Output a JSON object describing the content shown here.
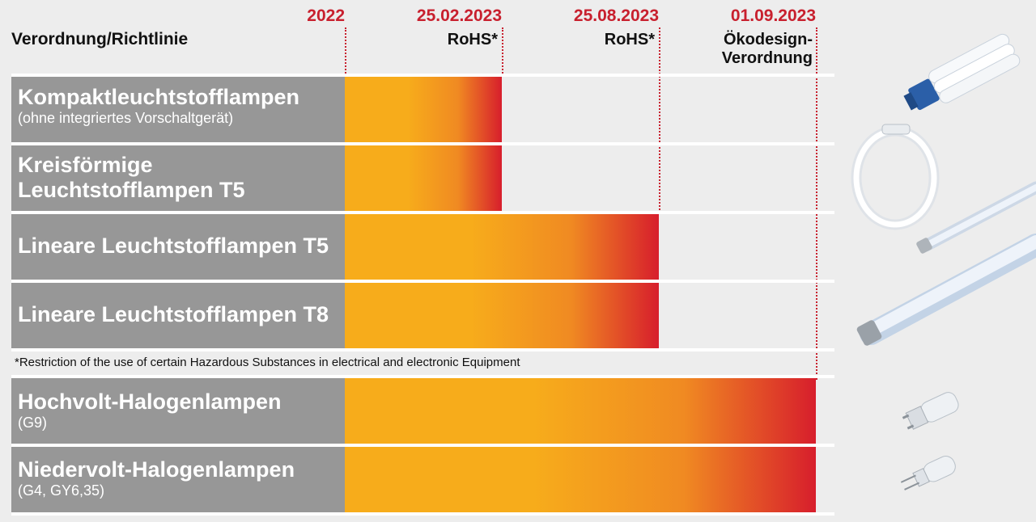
{
  "header": {
    "title": "Verordnung/Richtlinie"
  },
  "timeline": [
    {
      "date": "2022",
      "sublabel": ""
    },
    {
      "date": "25.02.2023",
      "sublabel": "RoHS*"
    },
    {
      "date": "25.08.2023",
      "sublabel": "RoHS*"
    },
    {
      "date": "01.09.2023",
      "sublabel": "Ökodesign-\nVerordnung"
    }
  ],
  "rows": [
    {
      "main": "Kompaktleuchtstofflampen",
      "sub": "(ohne integriertes Vorschaltgerät)"
    },
    {
      "main": "Kreisförmige\nLeuchtstofflampen T5",
      "sub": ""
    },
    {
      "main": "Lineare Leuchtstofflampen T5",
      "sub": ""
    },
    {
      "main": "Lineare Leuchtstofflampen T8",
      "sub": ""
    },
    {
      "main": "Hochvolt-Halogenlampen",
      "sub": "(G9)"
    },
    {
      "main": "Niedervolt-Halogenlampen",
      "sub": "(G4, GY6,35)"
    }
  ],
  "footnote": "*Restriction of the use of certain Hazardous Substances in electrical and electronic Equipment",
  "colors": {
    "date": "#c8202e",
    "label_bg": "#979797",
    "bar_start": "#f7ac1b",
    "bar_end": "#d71e2c"
  },
  "icons": [
    "compact-fluorescent-lamp-icon",
    "circular-fluorescent-lamp-icon",
    "linear-t5-tube-icon",
    "linear-t8-tube-icon",
    "g9-halogen-capsule-icon",
    "g4-halogen-capsule-icon"
  ],
  "chart_data": {
    "type": "bar",
    "orientation": "horizontal",
    "categories": [
      "Kompaktleuchtstofflampen",
      "Kreisförmige Leuchtstofflampen T5",
      "Lineare Leuchtstofflampen T5",
      "Lineare Leuchtstofflampen T8",
      "Hochvolt-Halogenlampen",
      "Niedervolt-Halogenlampen"
    ],
    "x_ticks": [
      "2022",
      "25.02.2023",
      "25.08.2023",
      "01.09.2023"
    ],
    "start": [
      "2022",
      "2022",
      "2022",
      "2022",
      "2022",
      "2022"
    ],
    "end": [
      "25.02.2023",
      "25.02.2023",
      "25.08.2023",
      "25.08.2023",
      "01.09.2023",
      "01.09.2023"
    ]
  }
}
